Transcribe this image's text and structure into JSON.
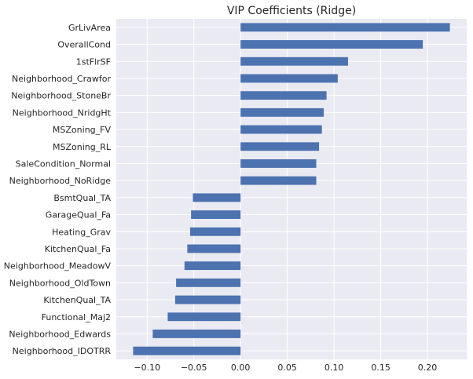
{
  "chart_data": {
    "type": "bar",
    "orientation": "horizontal",
    "title": "VIP Coefficients (Ridge)",
    "xlabel": "",
    "ylabel": "",
    "categories": [
      "GrLivArea",
      "OverallCond",
      "1stFlrSF",
      "Neighborhood_Crawfor",
      "Neighborhood_StoneBr",
      "Neighborhood_NridgHt",
      "MSZoning_FV",
      "MSZoning_RL",
      "SaleCondition_Normal",
      "Neighborhood_NoRidge",
      "BsmtQual_TA",
      "GarageQual_Fa",
      "Heating_Grav",
      "KitchenQual_Fa",
      "Neighborhood_MeadowV",
      "Neighborhood_OldTown",
      "KitchenQual_TA",
      "Functional_Maj2",
      "Neighborhood_Edwards",
      "Neighborhood_IDOTRR"
    ],
    "values": [
      0.224,
      0.195,
      0.115,
      0.104,
      0.092,
      0.089,
      0.087,
      0.084,
      0.081,
      0.081,
      -0.051,
      -0.053,
      -0.054,
      -0.057,
      -0.06,
      -0.069,
      -0.07,
      -0.078,
      -0.094,
      -0.115
    ],
    "xlim": [
      -0.133,
      0.242
    ],
    "xticks": [
      -0.1,
      -0.05,
      0.0,
      0.05,
      0.1,
      0.15,
      0.2
    ],
    "xtick_labels": [
      "−0.10",
      "−0.05",
      "0.00",
      "0.05",
      "0.10",
      "0.15",
      "0.20"
    ],
    "grid": true,
    "legend": "none",
    "colors": {
      "bar": "#4c72b0",
      "plot_background": "#eaeaf2",
      "grid": "#ffffff",
      "text": "#262626"
    }
  }
}
